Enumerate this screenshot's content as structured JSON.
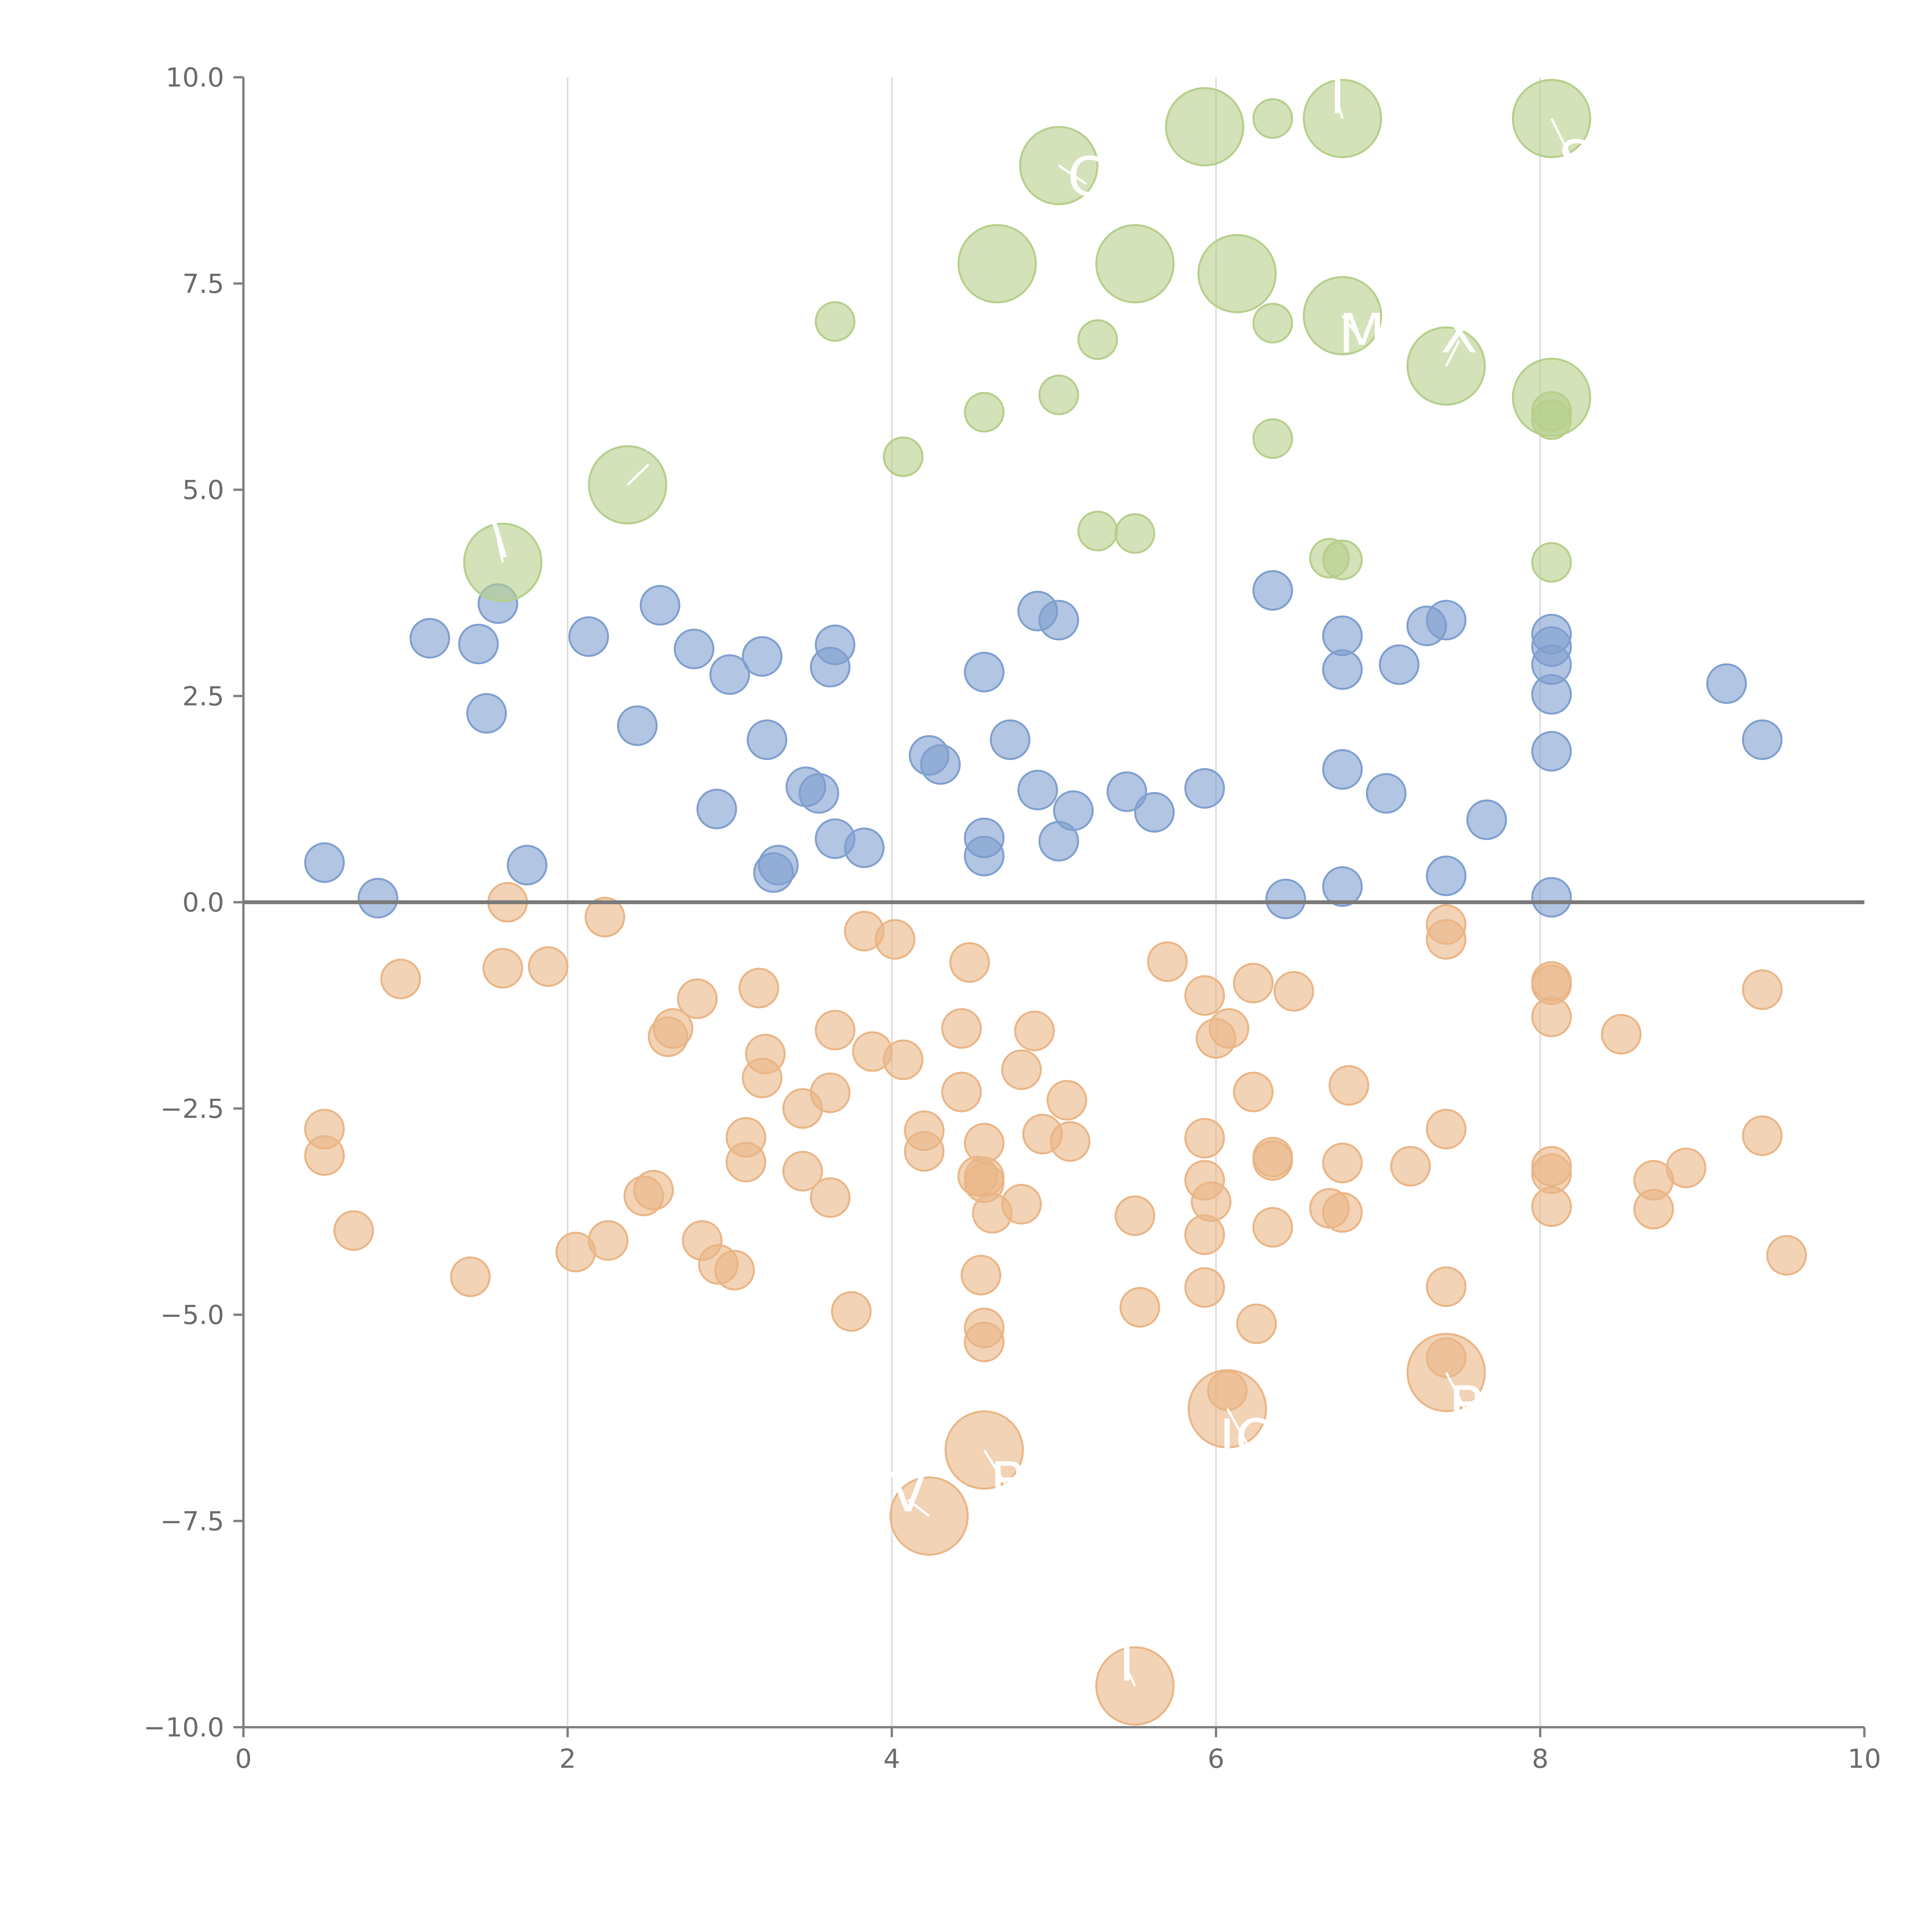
{
  "chart_data": {
    "type": "scatter",
    "title": "",
    "xlabel": "",
    "ylabel": "",
    "xlim": [
      0,
      10
    ],
    "ylim": [
      -10,
      10
    ],
    "grid": "vertical lines at x ticks",
    "reference_line_y": 0,
    "x_ticks": [
      0,
      2,
      4,
      6,
      8,
      10
    ],
    "x_tick_labels": [
      "0",
      "2",
      "4",
      "6",
      "8",
      "10"
    ],
    "y_ticks": [
      -10,
      -7.5,
      -5,
      -2.5,
      0,
      2.5,
      5,
      7.5,
      10
    ],
    "y_tick_labels": [
      "−10.0",
      "−7.5",
      "−5.0",
      "−2.5",
      "0.0",
      "2.5",
      "5.0",
      "7.5",
      "10.0"
    ],
    "point_size_units": {
      "small": 1,
      "large": 2
    },
    "series": [
      {
        "name": "blue",
        "color": "#7f9fcf",
        "points": [
          {
            "x": 0.5,
            "y": 0.48,
            "s": 1
          },
          {
            "x": 0.83,
            "y": 0.05,
            "s": 1
          },
          {
            "x": 1.15,
            "y": 3.2,
            "s": 1
          },
          {
            "x": 1.45,
            "y": 3.13,
            "s": 1
          },
          {
            "x": 1.5,
            "y": 2.29,
            "s": 1
          },
          {
            "x": 1.57,
            "y": 3.62,
            "s": 1
          },
          {
            "x": 1.75,
            "y": 0.45,
            "s": 1
          },
          {
            "x": 2.13,
            "y": 3.22,
            "s": 1
          },
          {
            "x": 2.43,
            "y": 2.14,
            "s": 1
          },
          {
            "x": 2.57,
            "y": 3.6,
            "s": 1
          },
          {
            "x": 2.78,
            "y": 3.07,
            "s": 1
          },
          {
            "x": 2.92,
            "y": 1.13,
            "s": 1
          },
          {
            "x": 3.0,
            "y": 2.76,
            "s": 1
          },
          {
            "x": 3.2,
            "y": 2.98,
            "s": 1
          },
          {
            "x": 3.23,
            "y": 1.97,
            "s": 1
          },
          {
            "x": 3.27,
            "y": 0.36,
            "s": 1
          },
          {
            "x": 3.3,
            "y": 0.45,
            "s": 1
          },
          {
            "x": 3.47,
            "y": 1.4,
            "s": 1
          },
          {
            "x": 3.55,
            "y": 1.32,
            "s": 1
          },
          {
            "x": 3.62,
            "y": 2.85,
            "s": 1
          },
          {
            "x": 3.65,
            "y": 3.12,
            "s": 1
          },
          {
            "x": 3.65,
            "y": 0.77,
            "s": 1
          },
          {
            "x": 3.83,
            "y": 0.66,
            "s": 1
          },
          {
            "x": 4.23,
            "y": 1.78,
            "s": 1
          },
          {
            "x": 4.3,
            "y": 1.67,
            "s": 1
          },
          {
            "x": 4.57,
            "y": 2.79,
            "s": 1
          },
          {
            "x": 4.57,
            "y": 0.78,
            "s": 1
          },
          {
            "x": 4.57,
            "y": 0.56,
            "s": 1
          },
          {
            "x": 4.73,
            "y": 1.97,
            "s": 1
          },
          {
            "x": 4.9,
            "y": 3.53,
            "s": 1
          },
          {
            "x": 4.9,
            "y": 1.36,
            "s": 1
          },
          {
            "x": 5.03,
            "y": 3.42,
            "s": 1
          },
          {
            "x": 5.03,
            "y": 0.74,
            "s": 1
          },
          {
            "x": 5.12,
            "y": 1.11,
            "s": 1
          },
          {
            "x": 5.45,
            "y": 1.34,
            "s": 1
          },
          {
            "x": 5.62,
            "y": 1.09,
            "s": 1
          },
          {
            "x": 5.93,
            "y": 1.38,
            "s": 1
          },
          {
            "x": 6.35,
            "y": 3.78,
            "s": 1
          },
          {
            "x": 6.43,
            "y": 0.04,
            "s": 1
          },
          {
            "x": 6.78,
            "y": 3.23,
            "s": 1
          },
          {
            "x": 6.78,
            "y": 2.82,
            "s": 1
          },
          {
            "x": 6.78,
            "y": 1.61,
            "s": 1
          },
          {
            "x": 6.78,
            "y": 0.19,
            "s": 1
          },
          {
            "x": 7.05,
            "y": 1.32,
            "s": 1
          },
          {
            "x": 7.13,
            "y": 2.88,
            "s": 1
          },
          {
            "x": 7.3,
            "y": 3.35,
            "s": 1
          },
          {
            "x": 7.42,
            "y": 3.42,
            "s": 1
          },
          {
            "x": 7.42,
            "y": 0.32,
            "s": 1
          },
          {
            "x": 7.67,
            "y": 1.0,
            "s": 1
          },
          {
            "x": 8.07,
            "y": 3.25,
            "s": 1
          },
          {
            "x": 8.07,
            "y": 3.1,
            "s": 1
          },
          {
            "x": 8.07,
            "y": 2.88,
            "s": 1
          },
          {
            "x": 8.07,
            "y": 2.52,
            "s": 1
          },
          {
            "x": 8.07,
            "y": 1.83,
            "s": 1
          },
          {
            "x": 8.07,
            "y": 0.06,
            "s": 1
          },
          {
            "x": 9.15,
            "y": 2.65,
            "s": 1
          },
          {
            "x": 9.37,
            "y": 1.97,
            "s": 1
          }
        ]
      },
      {
        "name": "green",
        "color": "#b5cf8a",
        "points": [
          {
            "x": 1.6,
            "y": 4.12,
            "s": 2
          },
          {
            "x": 2.37,
            "y": 5.06,
            "s": 2
          },
          {
            "x": 3.65,
            "y": 7.04,
            "s": 1
          },
          {
            "x": 4.07,
            "y": 5.4,
            "s": 1
          },
          {
            "x": 4.57,
            "y": 5.94,
            "s": 1
          },
          {
            "x": 4.65,
            "y": 7.74,
            "s": 2
          },
          {
            "x": 5.03,
            "y": 8.93,
            "s": 2
          },
          {
            "x": 5.03,
            "y": 6.15,
            "s": 1
          },
          {
            "x": 5.27,
            "y": 6.82,
            "s": 1
          },
          {
            "x": 5.27,
            "y": 4.5,
            "s": 1
          },
          {
            "x": 5.5,
            "y": 7.74,
            "s": 2
          },
          {
            "x": 5.5,
            "y": 4.47,
            "s": 1
          },
          {
            "x": 5.93,
            "y": 9.4,
            "s": 2
          },
          {
            "x": 6.13,
            "y": 7.62,
            "s": 2
          },
          {
            "x": 6.35,
            "y": 9.5,
            "s": 1
          },
          {
            "x": 6.35,
            "y": 7.02,
            "s": 1
          },
          {
            "x": 6.35,
            "y": 5.62,
            "s": 1
          },
          {
            "x": 6.7,
            "y": 4.17,
            "s": 1
          },
          {
            "x": 6.78,
            "y": 9.5,
            "s": 2
          },
          {
            "x": 6.78,
            "y": 7.11,
            "s": 2
          },
          {
            "x": 6.78,
            "y": 4.15,
            "s": 1
          },
          {
            "x": 7.42,
            "y": 6.5,
            "s": 2
          },
          {
            "x": 8.07,
            "y": 9.5,
            "s": 2
          },
          {
            "x": 8.07,
            "y": 6.12,
            "s": 2
          },
          {
            "x": 8.07,
            "y": 5.95,
            "s": 1
          },
          {
            "x": 8.07,
            "y": 5.85,
            "s": 1
          },
          {
            "x": 8.07,
            "y": 4.12,
            "s": 1
          }
        ]
      },
      {
        "name": "orange",
        "color": "#eab585",
        "points": [
          {
            "x": 0.5,
            "y": -2.75,
            "s": 1
          },
          {
            "x": 0.5,
            "y": -3.07,
            "s": 1
          },
          {
            "x": 0.68,
            "y": -3.98,
            "s": 1
          },
          {
            "x": 0.97,
            "y": -0.93,
            "s": 1
          },
          {
            "x": 1.4,
            "y": -4.54,
            "s": 1
          },
          {
            "x": 1.6,
            "y": -0.8,
            "s": 1
          },
          {
            "x": 1.63,
            "y": 0.0,
            "s": 1
          },
          {
            "x": 1.88,
            "y": -0.78,
            "s": 1
          },
          {
            "x": 2.05,
            "y": -4.24,
            "s": 1
          },
          {
            "x": 2.23,
            "y": -0.18,
            "s": 1
          },
          {
            "x": 2.25,
            "y": -4.1,
            "s": 1
          },
          {
            "x": 2.47,
            "y": -3.56,
            "s": 1
          },
          {
            "x": 2.53,
            "y": -3.49,
            "s": 1
          },
          {
            "x": 2.62,
            "y": -1.63,
            "s": 1
          },
          {
            "x": 2.65,
            "y": -1.53,
            "s": 1
          },
          {
            "x": 2.8,
            "y": -1.17,
            "s": 1
          },
          {
            "x": 2.83,
            "y": -4.1,
            "s": 1
          },
          {
            "x": 2.93,
            "y": -4.39,
            "s": 1
          },
          {
            "x": 3.03,
            "y": -4.46,
            "s": 1
          },
          {
            "x": 3.1,
            "y": -2.85,
            "s": 1
          },
          {
            "x": 3.1,
            "y": -3.15,
            "s": 1
          },
          {
            "x": 3.18,
            "y": -1.04,
            "s": 1
          },
          {
            "x": 3.2,
            "y": -2.13,
            "s": 1
          },
          {
            "x": 3.22,
            "y": -1.84,
            "s": 1
          },
          {
            "x": 3.45,
            "y": -2.5,
            "s": 1
          },
          {
            "x": 3.45,
            "y": -3.26,
            "s": 1
          },
          {
            "x": 3.62,
            "y": -2.31,
            "s": 1
          },
          {
            "x": 3.62,
            "y": -3.58,
            "s": 1
          },
          {
            "x": 3.65,
            "y": -1.55,
            "s": 1
          },
          {
            "x": 3.75,
            "y": -4.96,
            "s": 1
          },
          {
            "x": 3.83,
            "y": -0.35,
            "s": 1
          },
          {
            "x": 3.88,
            "y": -1.81,
            "s": 1
          },
          {
            "x": 4.02,
            "y": -0.45,
            "s": 1
          },
          {
            "x": 4.07,
            "y": -1.91,
            "s": 1
          },
          {
            "x": 4.2,
            "y": -2.77,
            "s": 1
          },
          {
            "x": 4.2,
            "y": -3.02,
            "s": 1
          },
          {
            "x": 4.23,
            "y": -7.44,
            "s": 2
          },
          {
            "x": 4.43,
            "y": -1.53,
            "s": 1
          },
          {
            "x": 4.43,
            "y": -2.3,
            "s": 1
          },
          {
            "x": 4.48,
            "y": -0.73,
            "s": 1
          },
          {
            "x": 4.53,
            "y": -3.32,
            "s": 1
          },
          {
            "x": 4.55,
            "y": -4.52,
            "s": 1
          },
          {
            "x": 4.57,
            "y": -3.33,
            "s": 1
          },
          {
            "x": 4.57,
            "y": -3.4,
            "s": 1
          },
          {
            "x": 4.57,
            "y": -2.92,
            "s": 1
          },
          {
            "x": 4.57,
            "y": -5.16,
            "s": 1
          },
          {
            "x": 4.57,
            "y": -5.33,
            "s": 1
          },
          {
            "x": 4.57,
            "y": -6.64,
            "s": 2
          },
          {
            "x": 4.62,
            "y": -3.77,
            "s": 1
          },
          {
            "x": 4.8,
            "y": -2.03,
            "s": 1
          },
          {
            "x": 4.8,
            "y": -3.66,
            "s": 1
          },
          {
            "x": 4.88,
            "y": -1.56,
            "s": 1
          },
          {
            "x": 4.93,
            "y": -2.81,
            "s": 1
          },
          {
            "x": 5.08,
            "y": -2.4,
            "s": 1
          },
          {
            "x": 5.1,
            "y": -2.9,
            "s": 1
          },
          {
            "x": 5.5,
            "y": -3.8,
            "s": 1
          },
          {
            "x": 5.53,
            "y": -4.91,
            "s": 1
          },
          {
            "x": 5.5,
            "y": -9.5,
            "s": 2
          },
          {
            "x": 5.7,
            "y": -0.72,
            "s": 1
          },
          {
            "x": 5.93,
            "y": -1.13,
            "s": 1
          },
          {
            "x": 5.93,
            "y": -2.86,
            "s": 1
          },
          {
            "x": 5.93,
            "y": -3.37,
            "s": 1
          },
          {
            "x": 5.93,
            "y": -4.03,
            "s": 1
          },
          {
            "x": 5.93,
            "y": -4.67,
            "s": 1
          },
          {
            "x": 5.97,
            "y": -3.63,
            "s": 1
          },
          {
            "x": 6.0,
            "y": -1.65,
            "s": 1
          },
          {
            "x": 6.08,
            "y": -1.53,
            "s": 1
          },
          {
            "x": 6.07,
            "y": -5.92,
            "s": 1
          },
          {
            "x": 6.07,
            "y": -6.14,
            "s": 2
          },
          {
            "x": 6.23,
            "y": -0.98,
            "s": 1
          },
          {
            "x": 6.23,
            "y": -2.3,
            "s": 1
          },
          {
            "x": 6.25,
            "y": -5.11,
            "s": 1
          },
          {
            "x": 6.35,
            "y": -3.09,
            "s": 1
          },
          {
            "x": 6.35,
            "y": -3.13,
            "s": 1
          },
          {
            "x": 6.35,
            "y": -3.94,
            "s": 1
          },
          {
            "x": 6.48,
            "y": -1.08,
            "s": 1
          },
          {
            "x": 6.7,
            "y": -3.71,
            "s": 1
          },
          {
            "x": 6.78,
            "y": -3.16,
            "s": 1
          },
          {
            "x": 6.78,
            "y": -3.76,
            "s": 1
          },
          {
            "x": 6.82,
            "y": -2.22,
            "s": 1
          },
          {
            "x": 7.2,
            "y": -3.2,
            "s": 1
          },
          {
            "x": 7.42,
            "y": -0.27,
            "s": 1
          },
          {
            "x": 7.42,
            "y": -0.45,
            "s": 1
          },
          {
            "x": 7.42,
            "y": -2.75,
            "s": 1
          },
          {
            "x": 7.42,
            "y": -4.66,
            "s": 1
          },
          {
            "x": 7.42,
            "y": -5.52,
            "s": 1
          },
          {
            "x": 7.42,
            "y": -5.7,
            "s": 2
          },
          {
            "x": 8.07,
            "y": -0.96,
            "s": 1
          },
          {
            "x": 8.07,
            "y": -1.0,
            "s": 1
          },
          {
            "x": 8.07,
            "y": -1.39,
            "s": 1
          },
          {
            "x": 8.07,
            "y": -3.2,
            "s": 1
          },
          {
            "x": 8.07,
            "y": -3.29,
            "s": 1
          },
          {
            "x": 8.07,
            "y": -3.69,
            "s": 1
          },
          {
            "x": 8.5,
            "y": -1.6,
            "s": 1
          },
          {
            "x": 8.7,
            "y": -3.37,
            "s": 1
          },
          {
            "x": 8.7,
            "y": -3.72,
            "s": 1
          },
          {
            "x": 8.9,
            "y": -3.22,
            "s": 1
          },
          {
            "x": 9.37,
            "y": -1.06,
            "s": 1
          },
          {
            "x": 9.37,
            "y": -2.83,
            "s": 1
          },
          {
            "x": 9.52,
            "y": -4.28,
            "s": 1
          }
        ]
      }
    ],
    "annotations": [
      {
        "text": "\\",
        "x": 1.57,
        "y": 4.48,
        "anchor_x": 1.6,
        "anchor_y": 4.12
      },
      {
        "text": "'",
        "x": 2.5,
        "y": 5.4,
        "anchor_x": 2.37,
        "anchor_y": 5.06
      },
      {
        "text": "I",
        "x": 6.75,
        "y": 9.8,
        "anchor_x": 6.78,
        "anchor_y": 9.5
      },
      {
        "text": "C",
        "x": 5.2,
        "y": 8.8,
        "anchor_x": 5.03,
        "anchor_y": 8.93
      },
      {
        "text": "S",
        "x": 8.22,
        "y": 9.0,
        "anchor_x": 8.07,
        "anchor_y": 9.5
      },
      {
        "text": "M",
        "x": 6.9,
        "y": 6.9,
        "anchor_x": 6.78,
        "anchor_y": 7.11
      },
      {
        "text": "X",
        "x": 7.5,
        "y": 6.9,
        "anchor_x": 7.42,
        "anchor_y": 6.5
      },
      {
        "text": "B",
        "x": 7.55,
        "y": -6.1,
        "anchor_x": 7.42,
        "anchor_y": -5.7
      },
      {
        "text": "IO",
        "x": 6.2,
        "y": -6.5,
        "anchor_x": 6.07,
        "anchor_y": -6.14
      },
      {
        "text": "B",
        "x": 4.72,
        "y": -7.02,
        "anchor_x": 4.57,
        "anchor_y": -6.64
      },
      {
        "text": "V",
        "x": 4.1,
        "y": -7.15,
        "anchor_x": 4.23,
        "anchor_y": -7.44
      },
      {
        "text": "I",
        "x": 5.45,
        "y": -9.2,
        "anchor_x": 5.5,
        "anchor_y": -9.5
      }
    ]
  }
}
